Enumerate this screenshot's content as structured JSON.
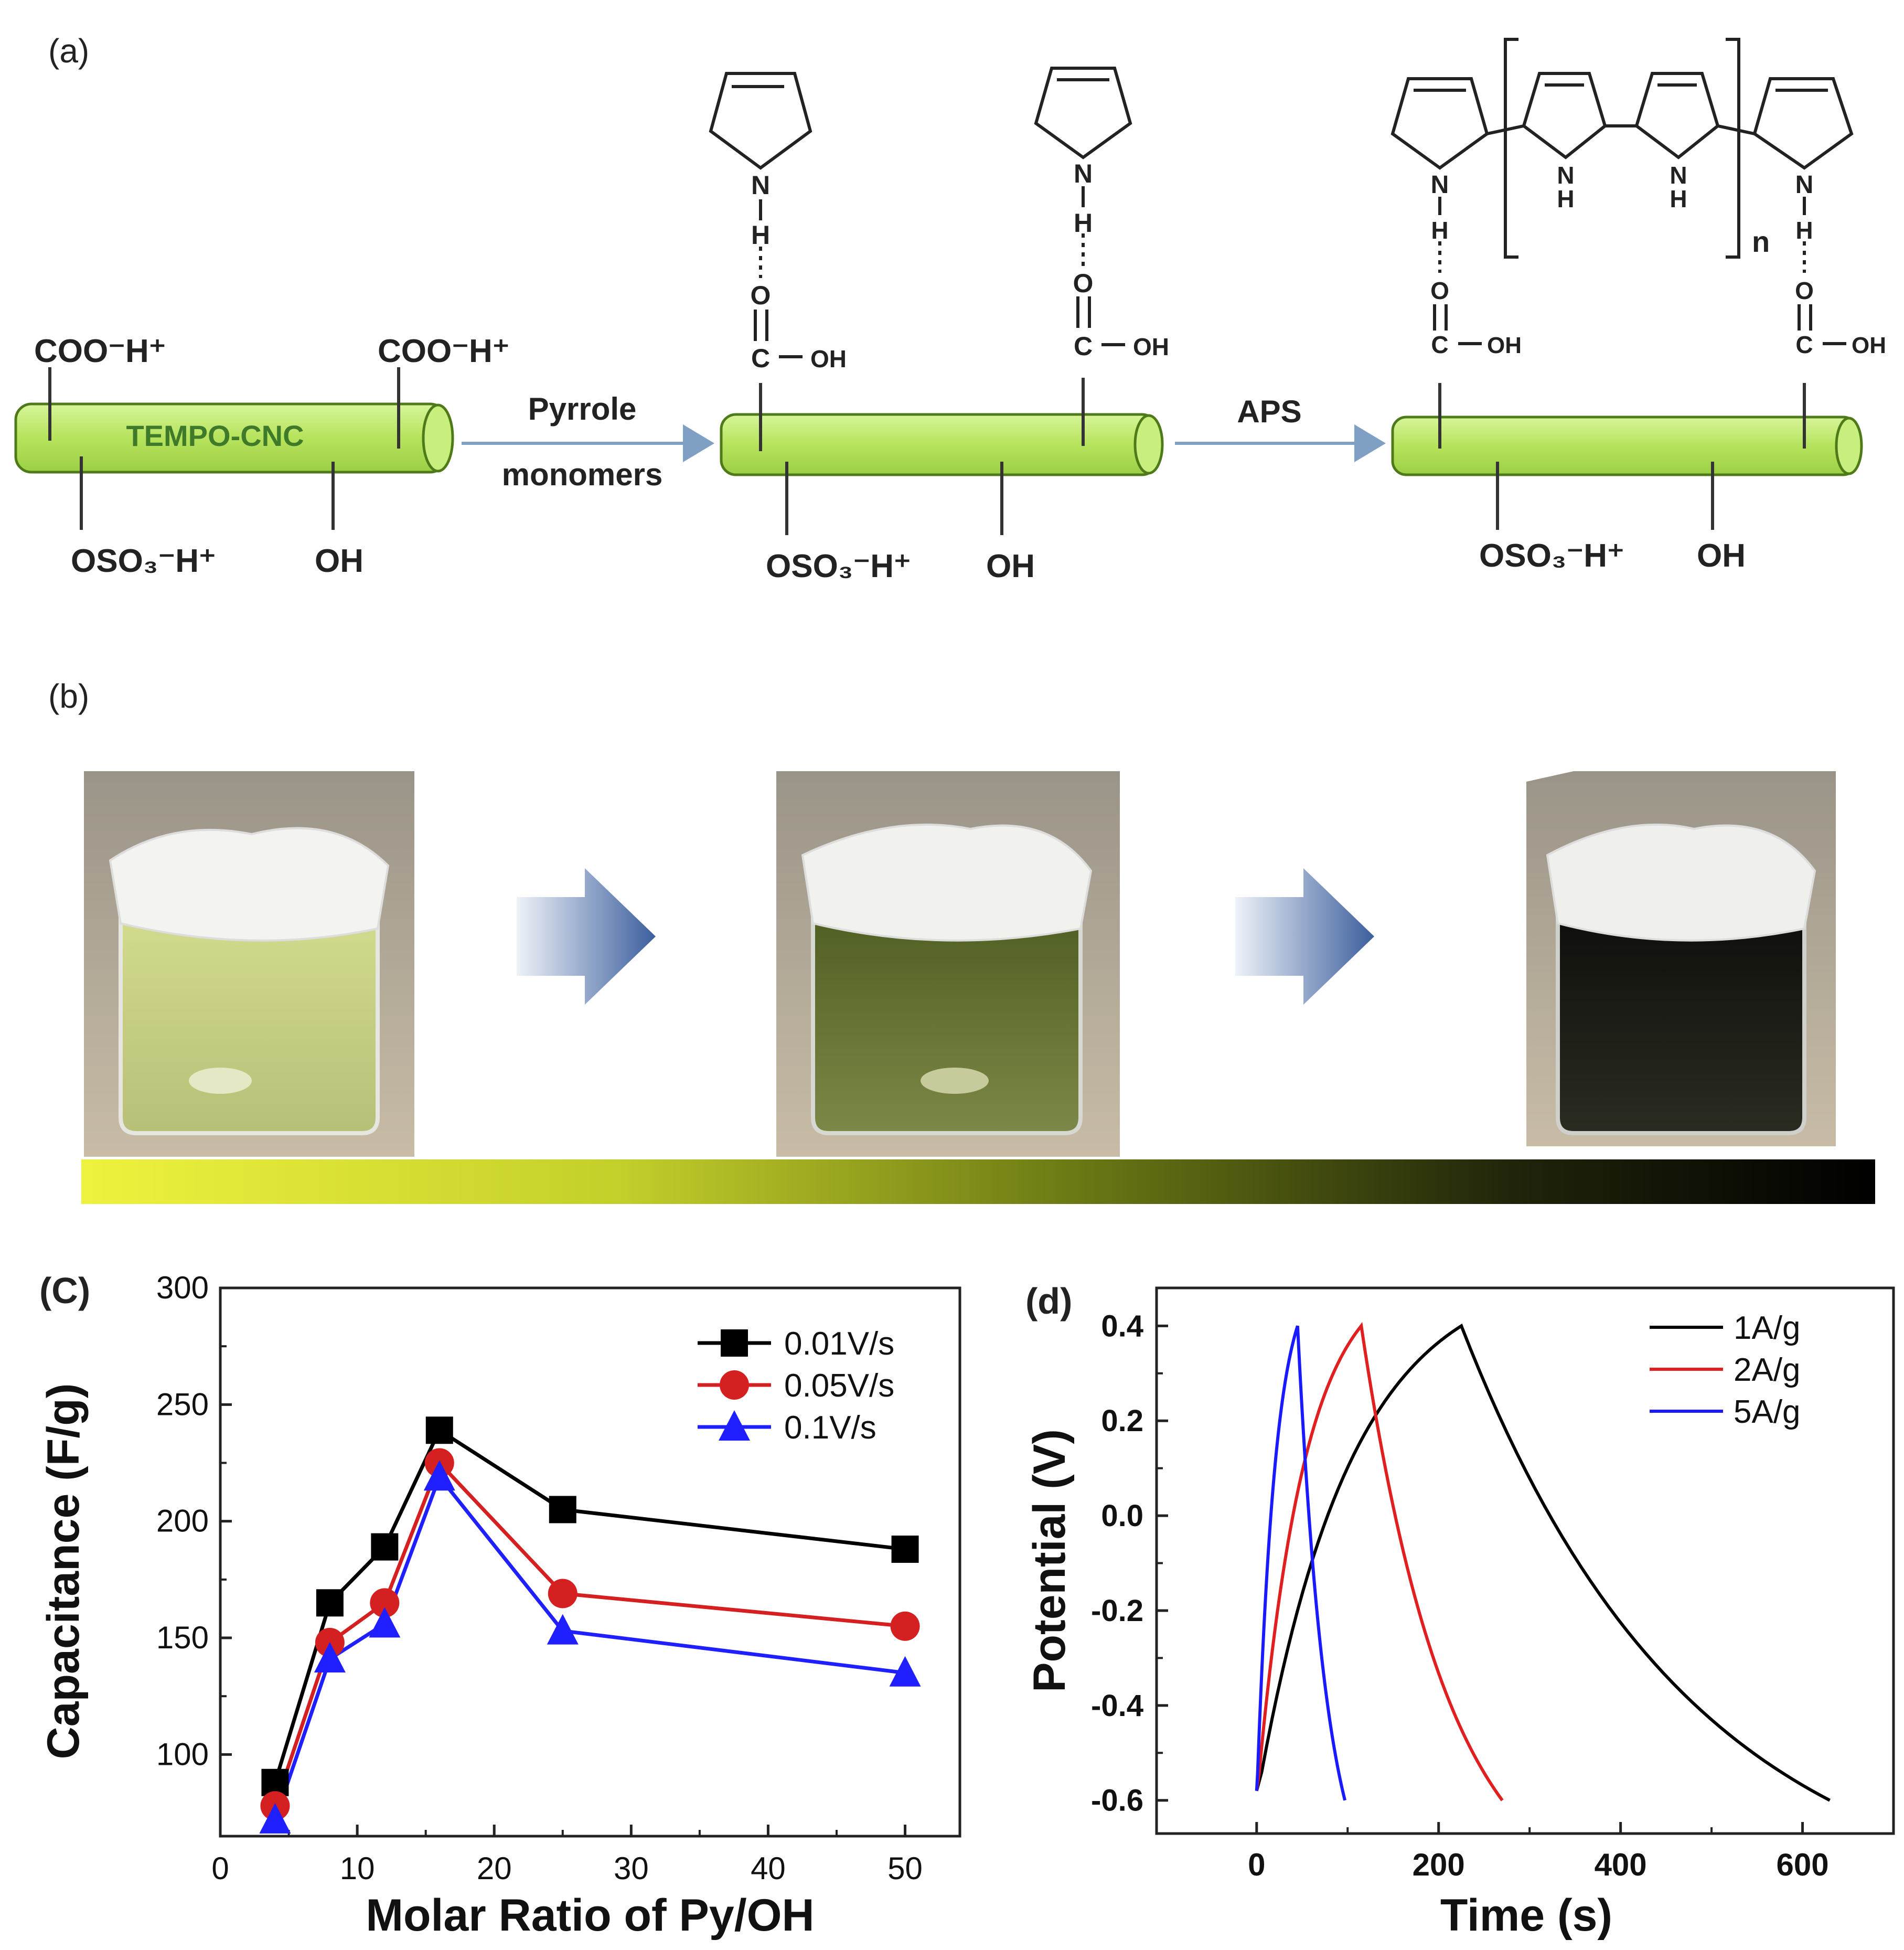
{
  "panels": {
    "a": "(a)",
    "b": "(b)",
    "c": "(C)",
    "d": "(d)"
  },
  "scheme": {
    "rod_label": "TEMPO-CNC",
    "group_cooh": "COO⁻H⁺",
    "group_oso3": "OSO₃⁻H⁺",
    "group_oh": "OH",
    "step1_line1": "Pyrrole",
    "step1_line2": "monomers",
    "step2": "APS",
    "atom_n": "N",
    "atom_h": "H",
    "atom_o": "O",
    "atom_c": "C",
    "group_oh_small": "OH",
    "polymer_n": "n",
    "colors": {
      "rod": "#b6e35c",
      "rod_edge": "#4f7a1a",
      "arrow": "#7f9fc4"
    }
  },
  "photo_strip": {
    "gradient_colors": [
      "#e5f03a",
      "#8a9a16",
      "#000000"
    ],
    "arrow_color": "#3c5f9e",
    "solution_colors": [
      "#c7d27a",
      "#5f6e2c",
      "#15170f"
    ]
  },
  "chart_data": [
    {
      "type": "line",
      "panel": "(C)",
      "xlabel": "Molar Ratio of Py/OH",
      "ylabel": "Capacitance (F/g)",
      "xlim": [
        0,
        54
      ],
      "ylim": [
        65,
        300
      ],
      "xticks": [
        0,
        10,
        20,
        30,
        40,
        50
      ],
      "yticks": [
        100,
        150,
        200,
        250,
        300
      ],
      "legend_position": "top-right",
      "x": [
        4,
        8,
        12,
        16,
        25,
        50
      ],
      "series": [
        {
          "name": "0.01V/s",
          "color": "#000000",
          "marker": "square",
          "values": [
            88,
            165,
            189,
            239,
            205,
            188
          ]
        },
        {
          "name": "0.05V/s",
          "color": "#d42020",
          "marker": "circle",
          "values": [
            78,
            148,
            165,
            225,
            169,
            155
          ]
        },
        {
          "name": "0.1V/s",
          "color": "#1f1fff",
          "marker": "triangle",
          "values": [
            72,
            141,
            156,
            219,
            153,
            135
          ]
        }
      ]
    },
    {
      "type": "line",
      "panel": "(d)",
      "xlabel": "Time (s)",
      "ylabel": "Potential (V)",
      "xlim": [
        -110,
        700
      ],
      "ylim": [
        -0.67,
        0.48
      ],
      "xticks": [
        0,
        200,
        400,
        600
      ],
      "yticks": [
        -0.6,
        -0.4,
        -0.2,
        0.0,
        0.2,
        0.4
      ],
      "ytick_labels": [
        "-0.6",
        "-0.4",
        "-0.2",
        "0.0",
        "0.2",
        "0.4"
      ],
      "legend_position": "top-right",
      "series": [
        {
          "name": "1A/g",
          "color": "#000000",
          "charge_end": 225,
          "discharge_end": 630
        },
        {
          "name": "2A/g",
          "color": "#e02020",
          "charge_end": 115,
          "discharge_end": 270
        },
        {
          "name": "5A/g",
          "color": "#1a1aff",
          "charge_end": 45,
          "discharge_end": 97
        }
      ],
      "v_min": -0.6,
      "v_max": 0.4
    }
  ]
}
